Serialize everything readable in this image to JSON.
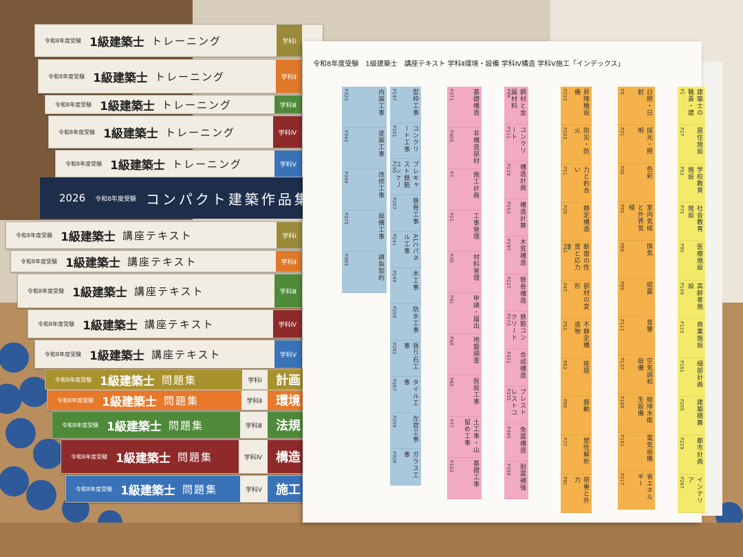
{
  "common": {
    "exam": "令和8年度受験",
    "brand": "1級建築士"
  },
  "compact": {
    "year": "2026",
    "exam": "令和8年度受験",
    "title": "コンパクト建築作品集"
  },
  "books": [
    {
      "title": "トレーニング",
      "volume": "学科Ⅰ",
      "color": "#9a8a3a"
    },
    {
      "title": "トレーニング",
      "volume": "学科Ⅱ",
      "color": "#e0782a"
    },
    {
      "title": "トレーニング",
      "volume": "学科Ⅲ",
      "color": "#4f8a3a"
    },
    {
      "title": "トレーニング",
      "volume": "学科Ⅳ",
      "color": "#8e2a2a"
    },
    {
      "title": "トレーニング",
      "volume": "学科Ⅴ",
      "color": "#3a72b8"
    },
    {
      "title": "講座テキスト",
      "volume": "学科Ⅰ",
      "color": "#9a8a3a"
    },
    {
      "title": "講座テキスト",
      "volume": "学科Ⅱ",
      "color": "#e0782a"
    },
    {
      "title": "講座テキスト",
      "volume": "学科Ⅲ",
      "color": "#4f8a3a"
    },
    {
      "title": "講座テキスト",
      "volume": "学科Ⅳ",
      "color": "#8e2a2a"
    },
    {
      "title": "講座テキスト",
      "volume": "学科Ⅴ",
      "color": "#3a72b8"
    },
    {
      "title": "問題集",
      "volume": "学科Ⅰ",
      "subject": "計画",
      "color": "#a8922e"
    },
    {
      "title": "問題集",
      "volume": "学科Ⅱ",
      "subject": "環境",
      "color": "#e8782a"
    },
    {
      "title": "問題集",
      "volume": "学科Ⅲ",
      "subject": "法規",
      "color": "#4f8a3a"
    },
    {
      "title": "問題集",
      "volume": "学科Ⅳ",
      "subject": "構造",
      "color": "#8e2a2a"
    },
    {
      "title": "問題集",
      "volume": "学科Ⅴ",
      "subject": "施工",
      "color": "#3a72b8"
    }
  ],
  "sheet": {
    "header": "令和8年度受験　1級建築士　講座テキスト 学科Ⅱ環境・設備 学科Ⅳ構造 学科Ⅴ施工「インデックス」",
    "columns": [
      {
        "color": "#a9c8dc",
        "items": [
          {
            "name": "内装工事",
            "page": "P323"
          },
          {
            "name": "塗装工事",
            "page": "P343"
          },
          {
            "name": "改修工事",
            "page": "P349"
          },
          {
            "name": "設備工事",
            "page": "P375"
          },
          {
            "name": "請負契約",
            "page": "P393"
          }
        ]
      },
      {
        "color": "#a9c8dc",
        "items": [
          {
            "name": "型枠工事",
            "page": "P147"
          },
          {
            "name": "コンクリート工事",
            "page": "P161"
          },
          {
            "name": "プレキャスト鉄筋コンクリート工事",
            "page": "P195"
          },
          {
            "name": "鉄骨工事",
            "page": "P207"
          },
          {
            "name": "ALCパネル工事",
            "page": "P241"
          },
          {
            "name": "木工事",
            "page": "P249"
          },
          {
            "name": "防水工事",
            "page": "P259"
          },
          {
            "name": "張り石工事",
            "page": "P281"
          },
          {
            "name": "タイル工事",
            "page": "P287"
          },
          {
            "name": "左官工事",
            "page": "P299"
          },
          {
            "name": "ガラス工事",
            "page": "P309"
          }
        ]
      },
      {
        "color": "#f2a9c4",
        "items": [
          {
            "name": "基礎構造",
            "page": "P371"
          },
          {
            "name": "非構造部材",
            "page": "P405"
          },
          {
            "name": "施工計画",
            "page": "P7"
          },
          {
            "name": "工事管理",
            "page": "P21"
          },
          {
            "name": "材料管理",
            "page": "P35"
          },
          {
            "name": "申請・届出",
            "page": "P41"
          },
          {
            "name": "地盤調査",
            "page": "P49"
          },
          {
            "name": "仮設工事",
            "page": "P65"
          },
          {
            "name": "土工事・山留め工事",
            "page": "P77"
          },
          {
            "name": "基礎工事",
            "page": "P103"
          }
        ]
      },
      {
        "color": "#f2a9c4",
        "items": [
          {
            "name": "鋼材と金属材料",
            "page": "P99"
          },
          {
            "name": "コンクリート",
            "page": "P111"
          },
          {
            "name": "構造計画",
            "page": "P119"
          },
          {
            "name": "構造計算",
            "page": "P153"
          },
          {
            "name": "木質構造",
            "page": "P197"
          },
          {
            "name": "鉄骨構造",
            "page": "P227"
          },
          {
            "name": "鉄筋コンクリート構造",
            "page": "P273"
          },
          {
            "name": "合成構造",
            "page": "P321"
          },
          {
            "name": "プレストレストコンクリート構造",
            "page": "P335"
          },
          {
            "name": "免震構造",
            "page": "P345"
          },
          {
            "name": "耐震補強",
            "page": "P359"
          }
        ]
      },
      {
        "color": "#f5b24a",
        "items": [
          {
            "name": "昇降機設備",
            "page": "P233"
          },
          {
            "name": "防災・防火",
            "page": "P243"
          },
          {
            "name": "力と釣合い",
            "page": "P11"
          },
          {
            "name": "静定構造",
            "page": "P29"
          },
          {
            "name": "断面の性質と応力度",
            "page": "P43"
          },
          {
            "name": "部材の変形",
            "page": "P47"
          },
          {
            "name": "不静定構造物",
            "page": "P53"
          },
          {
            "name": "座屈",
            "page": "P63"
          },
          {
            "name": "振動",
            "page": "P69"
          },
          {
            "name": "塑性解析",
            "page": "P77"
          },
          {
            "name": "荷重と外力",
            "page": "P91"
          }
        ]
      },
      {
        "color": "#f5b24a",
        "items": [
          {
            "name": "日照・日射",
            "page": "P5"
          },
          {
            "name": "採光・照明",
            "page": "P21"
          },
          {
            "name": "色彩",
            "page": "P45"
          },
          {
            "name": "室内気候と外界気候",
            "page": "P55"
          },
          {
            "name": "換気",
            "page": "P69"
          },
          {
            "name": "結露",
            "page": "P89"
          },
          {
            "name": "音響",
            "page": "P111"
          },
          {
            "name": "空気調和設備",
            "page": "P137"
          },
          {
            "name": "給排水衛生設備",
            "page": "P169"
          },
          {
            "name": "電気設備",
            "page": "P191"
          },
          {
            "name": "省エネルギー",
            "page": "P217"
          }
        ]
      },
      {
        "color": "#f4ea6a",
        "items": [
          {
            "name": "建築士の職責・建築設計の手法",
            "page": "P1"
          },
          {
            "name": "居住施設",
            "page": "P27"
          },
          {
            "name": "学校教育施設",
            "page": "P53"
          },
          {
            "name": "社会教育施設",
            "page": "P75"
          },
          {
            "name": "医療施設",
            "page": "P95"
          },
          {
            "name": "高齢者施設",
            "page": "P109"
          },
          {
            "name": "商業施設",
            "page": "P123"
          },
          {
            "name": "細部計画",
            "page": "P161"
          },
          {
            "name": "建築積算",
            "page": "P205"
          },
          {
            "name": "都市計画",
            "page": "P229"
          },
          {
            "name": "インテリア",
            "page": "P267"
          }
        ]
      }
    ]
  }
}
